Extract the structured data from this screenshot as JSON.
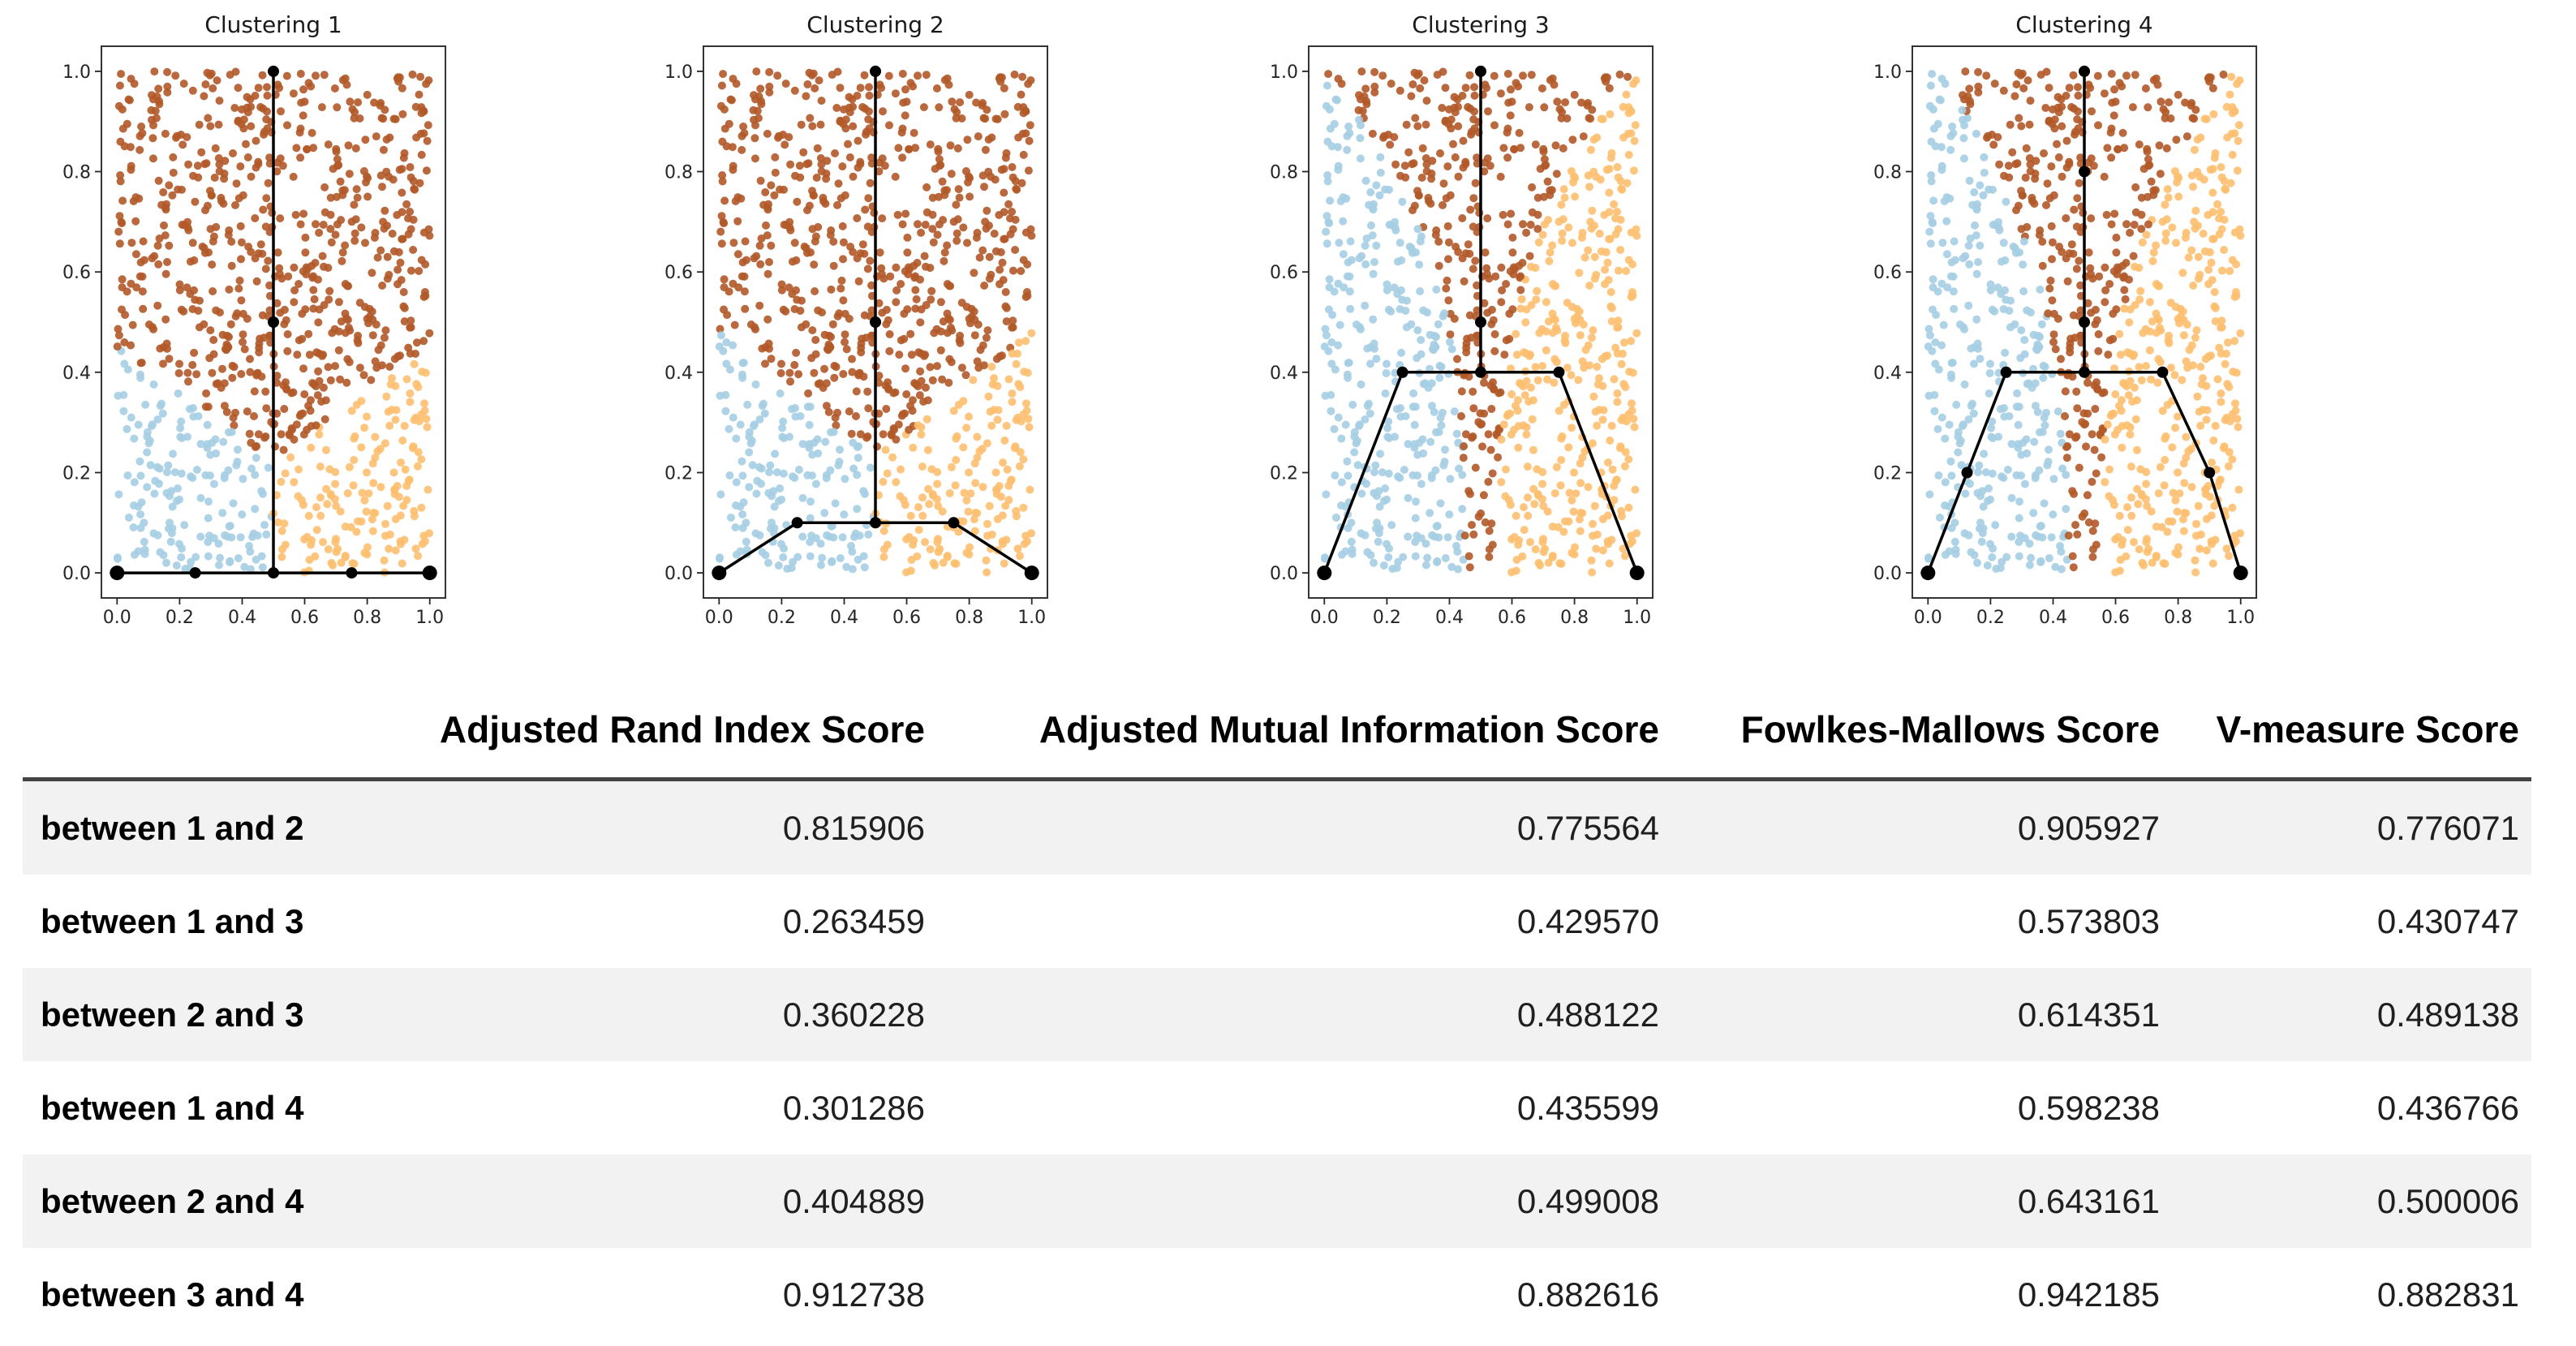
{
  "page": {
    "background": "#ffffff"
  },
  "chart_data": [
    {
      "type": "scatter",
      "title": "Clustering 1",
      "x_tick_labels": [
        "0.0",
        "0.2",
        "0.4",
        "0.6",
        "0.8",
        "1.0"
      ],
      "y_tick_labels": [
        "0.0",
        "0.2",
        "0.4",
        "0.6",
        "0.8",
        "1.0"
      ],
      "xlim": [
        0,
        1
      ],
      "ylim": [
        0,
        1
      ],
      "n_points": 1000,
      "seed": 77,
      "point_radius": 5,
      "cluster_colors": {
        "blue": "#a6cee3",
        "brown": "#b15928",
        "orange": "#fdbf6f"
      },
      "region_rule": {
        "kind": "v_valley",
        "base": 0.45,
        "slope": 0.45
      },
      "tree": {
        "color": "#000000",
        "polylines": [
          [
            [
              0,
              0
            ],
            [
              0.25,
              0
            ],
            [
              0.5,
              0
            ],
            [
              0.75,
              0
            ],
            [
              1,
              0
            ]
          ],
          [
            [
              0.5,
              0
            ],
            [
              0.5,
              0.5
            ],
            [
              0.5,
              1
            ]
          ]
        ],
        "nodes": [
          [
            0,
            0
          ],
          [
            0.25,
            0
          ],
          [
            0.5,
            0
          ],
          [
            0.75,
            0
          ],
          [
            1,
            0
          ],
          [
            0.5,
            0.5
          ],
          [
            0.5,
            1
          ]
        ]
      }
    },
    {
      "type": "scatter",
      "title": "Clustering 2",
      "x_tick_labels": [
        "0.0",
        "0.2",
        "0.4",
        "0.6",
        "0.8",
        "1.0"
      ],
      "y_tick_labels": [
        "0.0",
        "0.2",
        "0.4",
        "0.6",
        "0.8",
        "1.0"
      ],
      "xlim": [
        0,
        1
      ],
      "ylim": [
        0,
        1
      ],
      "n_points": 1000,
      "seed": 77,
      "point_radius": 5,
      "cluster_colors": {
        "blue": "#a6cee3",
        "brown": "#b15928",
        "orange": "#fdbf6f"
      },
      "region_rule": {
        "kind": "v_valley",
        "base": 0.48,
        "slope": 0.5
      },
      "tree": {
        "color": "#000000",
        "polylines": [
          [
            [
              0,
              0
            ],
            [
              0.25,
              0.1
            ],
            [
              0.5,
              0.1
            ],
            [
              0.75,
              0.1
            ],
            [
              1,
              0
            ]
          ],
          [
            [
              0.5,
              0.1
            ],
            [
              0.5,
              0.5
            ],
            [
              0.5,
              1
            ]
          ]
        ],
        "nodes": [
          [
            0,
            0
          ],
          [
            0.25,
            0.1
          ],
          [
            0.5,
            0.1
          ],
          [
            0.75,
            0.1
          ],
          [
            1,
            0
          ],
          [
            0.5,
            0.5
          ],
          [
            0.5,
            1
          ]
        ]
      }
    },
    {
      "type": "scatter",
      "title": "Clustering 3",
      "x_tick_labels": [
        "0.0",
        "0.2",
        "0.4",
        "0.6",
        "0.8",
        "1.0"
      ],
      "y_tick_labels": [
        "0.0",
        "0.2",
        "0.4",
        "0.6",
        "0.8",
        "1.0"
      ],
      "xlim": [
        0,
        1
      ],
      "ylim": [
        0,
        1
      ],
      "n_points": 1000,
      "seed": 77,
      "point_radius": 5,
      "cluster_colors": {
        "blue": "#a6cee3",
        "brown": "#b15928",
        "orange": "#fdbf6f"
      },
      "region_rule": {
        "kind": "wedge",
        "w0": 0.05,
        "amp": 0.45,
        "pow": 3
      },
      "tree": {
        "color": "#000000",
        "polylines": [
          [
            [
              0,
              0
            ],
            [
              0.25,
              0.4
            ],
            [
              0.5,
              0.4
            ],
            [
              0.75,
              0.4
            ],
            [
              1,
              0
            ]
          ],
          [
            [
              0.5,
              0.4
            ],
            [
              0.5,
              0.5
            ],
            [
              0.5,
              1
            ]
          ]
        ],
        "nodes": [
          [
            0,
            0
          ],
          [
            0.25,
            0.4
          ],
          [
            0.5,
            0.4
          ],
          [
            0.75,
            0.4
          ],
          [
            1,
            0
          ],
          [
            0.5,
            0.5
          ],
          [
            0.5,
            1
          ]
        ]
      }
    },
    {
      "type": "scatter",
      "title": "Clustering 4",
      "x_tick_labels": [
        "0.0",
        "0.2",
        "0.4",
        "0.6",
        "0.8",
        "1.0"
      ],
      "y_tick_labels": [
        "0.0",
        "0.2",
        "0.4",
        "0.6",
        "0.8",
        "1.0"
      ],
      "xlim": [
        0,
        1
      ],
      "ylim": [
        0,
        1
      ],
      "n_points": 1000,
      "seed": 77,
      "point_radius": 5,
      "cluster_colors": {
        "blue": "#a6cee3",
        "brown": "#b15928",
        "orange": "#fdbf6f"
      },
      "region_rule": {
        "kind": "wedge",
        "w0": 0.05,
        "amp": 0.42,
        "pow": 2.7
      },
      "tree": {
        "color": "#000000",
        "polylines": [
          [
            [
              0,
              0
            ],
            [
              0.125,
              0.2
            ],
            [
              0.25,
              0.4
            ],
            [
              0.5,
              0.4
            ],
            [
              0.75,
              0.4
            ],
            [
              0.9,
              0.2
            ],
            [
              1,
              0
            ]
          ],
          [
            [
              0.5,
              0.4
            ],
            [
              0.5,
              0.5
            ],
            [
              0.5,
              0.8
            ],
            [
              0.5,
              1
            ]
          ]
        ],
        "nodes": [
          [
            0,
            0
          ],
          [
            0.125,
            0.2
          ],
          [
            0.25,
            0.4
          ],
          [
            0.5,
            0.4
          ],
          [
            0.75,
            0.4
          ],
          [
            0.9,
            0.2
          ],
          [
            1,
            0
          ],
          [
            0.5,
            0.5
          ],
          [
            0.5,
            0.8
          ],
          [
            0.5,
            1
          ]
        ]
      }
    },
    {
      "type": "table",
      "columns": [
        "Adjusted Rand Index Score",
        "Adjusted Mutual Information Score",
        "Fowlkes-Mallows Score",
        "V-measure Score"
      ],
      "rows": [
        {
          "label": "between 1 and 2",
          "values": [
            "0.815906",
            "0.775564",
            "0.905927",
            "0.776071"
          ]
        },
        {
          "label": "between 1 and 3",
          "values": [
            "0.263459",
            "0.429570",
            "0.573803",
            "0.430747"
          ]
        },
        {
          "label": "between 2 and 3",
          "values": [
            "0.360228",
            "0.488122",
            "0.614351",
            "0.489138"
          ]
        },
        {
          "label": "between 1 and 4",
          "values": [
            "0.301286",
            "0.435599",
            "0.598238",
            "0.436766"
          ]
        },
        {
          "label": "between 2 and 4",
          "values": [
            "0.404889",
            "0.499008",
            "0.643161",
            "0.500006"
          ]
        },
        {
          "label": "between 3 and 4",
          "values": [
            "0.912738",
            "0.882616",
            "0.942185",
            "0.882831"
          ]
        }
      ],
      "styles": {
        "alt_row_bg": "#f2f2f2",
        "rule_color": "#434343",
        "header_text": "#000000",
        "value_text": "#1f1f1f"
      }
    }
  ]
}
